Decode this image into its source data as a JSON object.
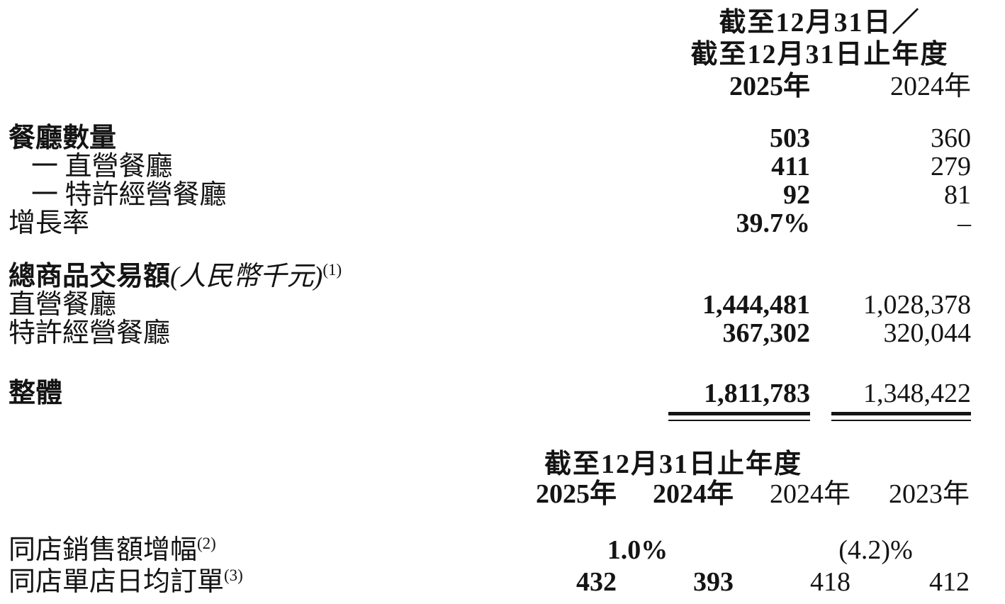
{
  "page": {
    "background_color": "#ffffff",
    "text_color": "#141414"
  },
  "table1": {
    "header": {
      "period_line1": "截至12月31日／",
      "period_line2": "截至12月31日止年度",
      "year_2025": "2025年",
      "year_2024": "2024年"
    },
    "restaurant_rows": [
      {
        "label": "餐廳數量",
        "y2025": "503",
        "y2024": "360"
      },
      {
        "label": "一 直營餐廳",
        "y2025": "411",
        "y2024": "279"
      },
      {
        "label": "一 特許經營餐廳",
        "y2025": "92",
        "y2024": "81"
      },
      {
        "label": "增長率",
        "y2025": "39.7%",
        "y2024": "–"
      }
    ],
    "gmv_section": {
      "title": "總商品交易額",
      "note": "(人民幣千元)",
      "footnote": "(1)",
      "rows": [
        {
          "label": "直營餐廳",
          "y2025": "1,444,481",
          "y2024": "1,028,378"
        },
        {
          "label": "特許經營餐廳",
          "y2025": "367,302",
          "y2024": "320,044"
        }
      ]
    },
    "total": {
      "label": "整體",
      "y2025": "1,811,783",
      "y2024": "1,348,422"
    }
  },
  "table2": {
    "header": {
      "period": "截至12月31日止年度",
      "years": [
        "2025年",
        "2024年",
        "2024年",
        "2023年"
      ]
    },
    "same_store_sales": {
      "label": "同店銷售額增幅",
      "footnote": "(2)",
      "left_value": "1.0%",
      "right_value": "(4.2)%"
    },
    "same_store_orders": {
      "label": "同店單店日均訂單",
      "footnote": "(3)",
      "values": [
        "432",
        "393",
        "418",
        "412"
      ]
    }
  }
}
